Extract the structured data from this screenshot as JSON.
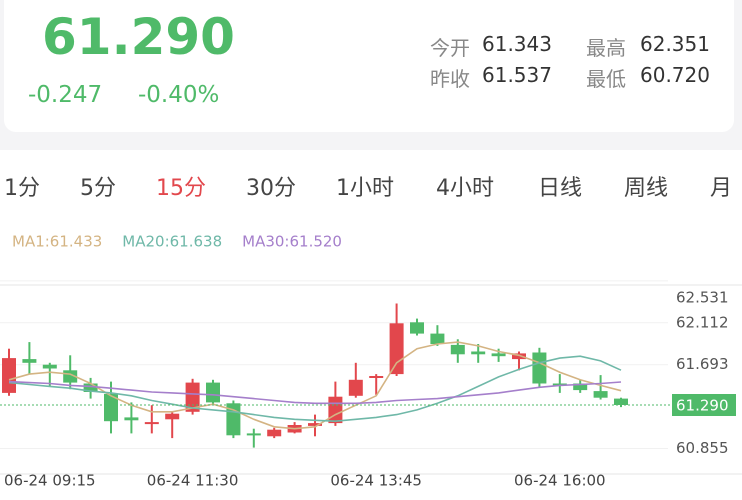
{
  "quote": {
    "price": "61.290",
    "change": "-0.247",
    "change_pct": "-0.40%",
    "stats": [
      {
        "label": "今开",
        "value": "61.343"
      },
      {
        "label": "最高",
        "value": "62.351"
      },
      {
        "label": "昨收",
        "value": "61.537"
      },
      {
        "label": "最低",
        "value": "60.720"
      }
    ]
  },
  "tabs": {
    "items": [
      "1分",
      "5分",
      "15分",
      "30分",
      "1小时",
      "4小时",
      "日线",
      "周线",
      "月"
    ],
    "active": 2
  },
  "chart_data": {
    "type": "candlestick",
    "categories": [
      "06-24 09:15",
      null,
      null,
      null,
      null,
      null,
      null,
      null,
      null,
      "06-24 11:30",
      null,
      null,
      null,
      null,
      null,
      null,
      null,
      null,
      "06-24 13:45",
      null,
      null,
      null,
      null,
      null,
      null,
      null,
      null,
      "06-24 16:00",
      null,
      null,
      null
    ],
    "open": [
      61.411,
      61.749,
      61.693,
      61.637,
      61.505,
      61.401,
      61.166,
      61.1,
      61.147,
      61.222,
      61.514,
      61.307,
      61.006,
      60.977,
      61.015,
      61.081,
      61.109,
      61.382,
      61.561,
      61.599,
      62.117,
      62.004,
      61.891,
      61.825,
      61.806,
      61.749,
      61.815,
      61.505,
      61.505,
      61.429,
      61.354
    ],
    "high": [
      61.853,
      61.919,
      61.712,
      61.787,
      61.561,
      61.524,
      61.316,
      61.288,
      61.222,
      61.552,
      61.542,
      61.335,
      61.053,
      61.062,
      61.119,
      61.194,
      61.524,
      61.712,
      61.599,
      62.305,
      62.154,
      62.088,
      61.947,
      61.9,
      61.853,
      61.825,
      61.862,
      61.599,
      61.542,
      61.589,
      61.363
    ],
    "low": [
      61.382,
      61.599,
      61.476,
      61.448,
      61.354,
      61.006,
      61.006,
      61.006,
      60.959,
      61.194,
      61.298,
      60.959,
      60.864,
      60.959,
      61.006,
      60.977,
      61.081,
      61.363,
      61.392,
      61.58,
      61.985,
      61.881,
      61.712,
      61.712,
      61.721,
      61.637,
      61.467,
      61.411,
      61.411,
      61.345,
      61.269
    ],
    "close": [
      61.759,
      61.712,
      61.655,
      61.514,
      61.42,
      61.128,
      61.137,
      61.119,
      61.203,
      61.514,
      61.316,
      60.987,
      60.987,
      61.043,
      61.09,
      61.109,
      61.373,
      61.542,
      61.58,
      62.107,
      62.004,
      61.9,
      61.797,
      61.797,
      61.778,
      61.806,
      61.505,
      61.486,
      61.439,
      61.363,
      61.29
    ],
    "up_color": "#e2474c",
    "down_color": "#4fba69",
    "series": [
      {
        "name": "MA1:61.433",
        "color": "#d4b483",
        "values": [
          61.542,
          61.599,
          61.618,
          61.599,
          61.505,
          61.382,
          61.288,
          61.222,
          61.222,
          61.26,
          61.298,
          61.241,
          61.147,
          61.072,
          61.053,
          61.072,
          61.194,
          61.288,
          61.382,
          61.712,
          61.853,
          61.9,
          61.919,
          61.881,
          61.825,
          61.787,
          61.712,
          61.618,
          61.542,
          61.486,
          61.433
        ]
      },
      {
        "name": "MA20:61.638",
        "color": "#6fb8a8",
        "values": [
          61.514,
          61.495,
          61.476,
          61.458,
          61.429,
          61.411,
          61.382,
          61.335,
          61.298,
          61.26,
          61.241,
          61.222,
          61.194,
          61.166,
          61.147,
          61.137,
          61.128,
          61.147,
          61.166,
          61.194,
          61.241,
          61.307,
          61.382,
          61.476,
          61.571,
          61.646,
          61.712,
          61.759,
          61.778,
          61.731,
          61.638
        ]
      },
      {
        "name": "MA30:61.520",
        "color": "#a57fcb",
        "values": [
          61.524,
          61.514,
          61.505,
          61.486,
          61.476,
          61.458,
          61.439,
          61.42,
          61.411,
          61.401,
          61.392,
          61.373,
          61.354,
          61.335,
          61.316,
          61.307,
          61.307,
          61.307,
          61.316,
          61.335,
          61.345,
          61.354,
          61.373,
          61.392,
          61.411,
          61.439,
          61.467,
          61.486,
          61.495,
          61.505,
          61.52
        ]
      }
    ],
    "ylim": [
      60.64,
      62.56
    ],
    "yticks": [
      60.855,
      61.693,
      62.112,
      62.531
    ],
    "grid": true,
    "last_price": {
      "value": 61.29,
      "label": "61.290"
    },
    "last_color": "#4fba69"
  }
}
